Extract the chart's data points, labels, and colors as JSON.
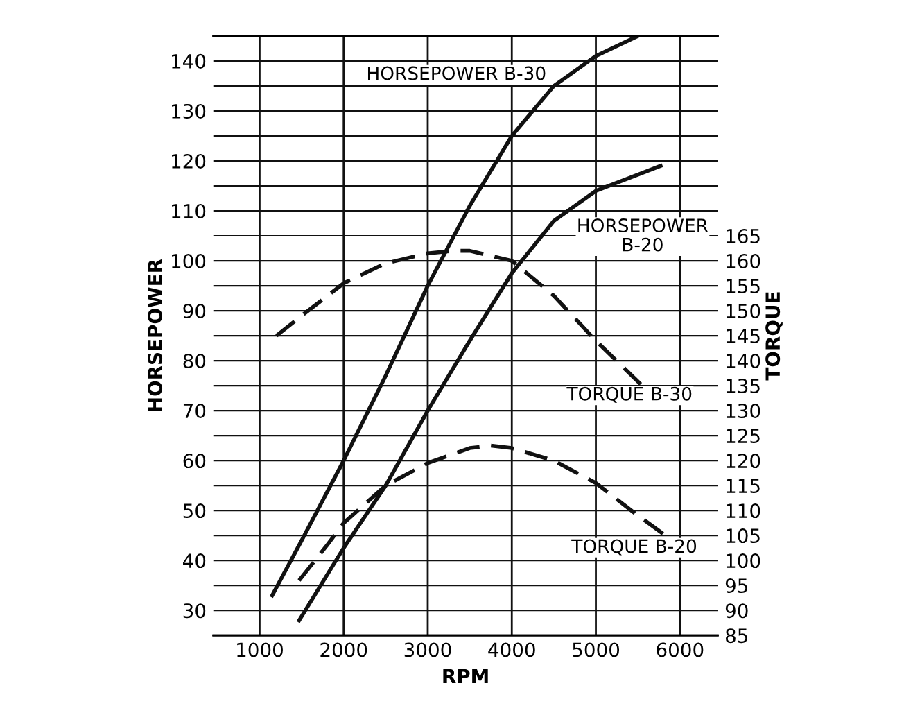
{
  "chart_data": {
    "type": "line",
    "xlabel": "RPM",
    "ylabel": "HORSEPOWER",
    "y2label": "TORQUE",
    "xlim": [
      450,
      6450
    ],
    "xticks": [
      1000,
      2000,
      3000,
      4000,
      5000,
      6000
    ],
    "ylim": [
      25,
      145
    ],
    "yticks": [
      {
        "value": 25,
        "label": null
      },
      30,
      {
        "value": 35,
        "label": null
      },
      40,
      {
        "value": 45,
        "label": null
      },
      50,
      {
        "value": 55,
        "label": null
      },
      60,
      {
        "value": 65,
        "label": null
      },
      70,
      {
        "value": 75,
        "label": null
      },
      80,
      {
        "value": 85,
        "label": null
      },
      90,
      {
        "value": 95,
        "label": null
      },
      100,
      {
        "value": 105,
        "label": null
      },
      110,
      {
        "value": 115,
        "label": null
      },
      120,
      {
        "value": 125,
        "label": null
      },
      130,
      {
        "value": 135,
        "label": null
      },
      140,
      {
        "value": 145,
        "label": null
      }
    ],
    "y2lim": [
      85,
      205
    ],
    "y2ticks": [
      85,
      90,
      95,
      100,
      105,
      110,
      115,
      120,
      125,
      130,
      135,
      140,
      145,
      150,
      155,
      160,
      165
    ],
    "grid": true,
    "marker": "none",
    "series": [
      {
        "name": "HORSEPOWER B-30",
        "color": "#111111",
        "line_style": "solid",
        "x": [
          1150,
          1500,
          2000,
          2500,
          3000,
          3500,
          4000,
          4500,
          5000,
          5500
        ],
        "values": [
          33,
          44,
          60,
          77,
          95,
          111,
          125,
          135,
          141,
          145
        ]
      },
      {
        "name": "HORSEPOWER\nB-20",
        "color": "#111111",
        "line_style": "solid",
        "x": [
          1470,
          2000,
          2500,
          3000,
          3500,
          4000,
          4500,
          5000,
          5770
        ],
        "values": [
          28,
          42.5,
          55,
          70,
          84,
          97.5,
          108,
          114,
          119
        ]
      },
      {
        "name": "TORQUE B-30",
        "color": "#111111",
        "line_style": "dashed",
        "axis": "y2",
        "x": [
          1200,
          1500,
          2000,
          2500,
          3000,
          3300,
          3500,
          4000,
          4500,
          5000,
          5550
        ],
        "values": [
          145,
          149,
          155.5,
          159.5,
          161.5,
          162,
          162,
          160,
          153,
          144,
          135
        ]
      },
      {
        "name": "TORQUE B-20",
        "color": "#111111",
        "line_style": "dashed",
        "axis": "y2",
        "x": [
          1470,
          1800,
          2000,
          2500,
          3000,
          3500,
          3750,
          4000,
          4500,
          5000,
          5500,
          5870
        ],
        "values": [
          96,
          103,
          107.5,
          115,
          119.5,
          122.5,
          123,
          122.5,
          120,
          115.5,
          109,
          104.5
        ]
      }
    ]
  }
}
